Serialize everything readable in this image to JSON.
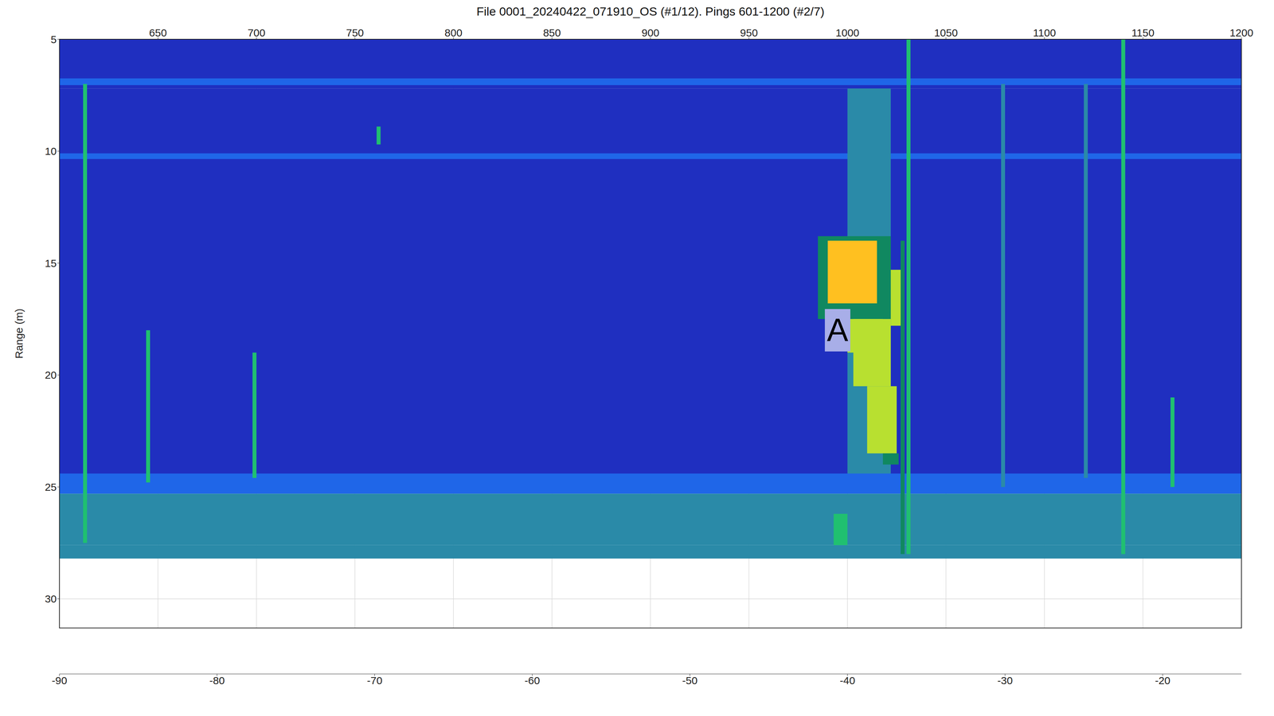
{
  "chart_data": {
    "type": "heatmap",
    "title": "File 0001_20240422_071910_OS (#1/12). Pings 601-1200 (#2/7)",
    "y_label": "Range (m)",
    "xlim": [
      600,
      1200
    ],
    "xticks": [
      650,
      700,
      750,
      800,
      850,
      900,
      950,
      1000,
      1050,
      1100,
      1150,
      1200
    ],
    "ylim": [
      5,
      31.3
    ],
    "yticks": [
      5,
      10,
      15,
      20,
      25,
      30
    ],
    "grid": true,
    "annotations": [
      {
        "text": "A",
        "x": 995,
        "y": 18
      }
    ],
    "cells": [
      {
        "x": [
          600,
          1200
        ],
        "y": [
          7.2,
          24.6
        ],
        "value": -72
      },
      {
        "x": [
          600,
          1200
        ],
        "y": [
          5,
          7.2
        ],
        "value": -74
      },
      {
        "x": [
          600,
          1200
        ],
        "y": [
          6.75,
          7.05
        ],
        "value": -77
      },
      {
        "x": [
          600,
          1200
        ],
        "y": [
          10.1,
          10.35
        ],
        "value": -77
      },
      {
        "x": [
          1000,
          1022
        ],
        "y": [
          7.2,
          24.6
        ],
        "value": -70
      },
      {
        "x": [
          600,
          1200
        ],
        "y": [
          24.4,
          25.3
        ],
        "value": -77
      },
      {
        "x": [
          600,
          1200
        ],
        "y": [
          25.3,
          27.6
        ],
        "value": -69
      },
      {
        "x": [
          600,
          1200
        ],
        "y": [
          27.6,
          28.2
        ],
        "value": -67
      },
      {
        "x": [
          993,
          1000
        ],
        "y": [
          26.2,
          27.6
        ],
        "value": -63
      },
      {
        "x": [
          612,
          614
        ],
        "y": [
          7,
          27.5
        ],
        "value": -63
      },
      {
        "x": [
          644,
          646
        ],
        "y": [
          18,
          24.8
        ],
        "value": -63
      },
      {
        "x": [
          698,
          700
        ],
        "y": [
          19,
          24.6
        ],
        "value": -64
      },
      {
        "x": [
          761,
          763
        ],
        "y": [
          8.9,
          9.7
        ],
        "value": -62
      },
      {
        "x": [
          1027,
          1029
        ],
        "y": [
          14,
          28
        ],
        "value": -60
      },
      {
        "x": [
          1030,
          1032
        ],
        "y": [
          5,
          28
        ],
        "value": -62
      },
      {
        "x": [
          1078,
          1080
        ],
        "y": [
          7,
          25
        ],
        "value": -66
      },
      {
        "x": [
          1139,
          1141
        ],
        "y": [
          5,
          28
        ],
        "value": -63
      },
      {
        "x": [
          1164,
          1166
        ],
        "y": [
          21,
          25
        ],
        "value": -64
      },
      {
        "x": [
          1120,
          1122
        ],
        "y": [
          7,
          24.6
        ],
        "value": -68
      },
      {
        "x": [
          985,
          1022
        ],
        "y": [
          13.8,
          17.5
        ],
        "value": -56
      },
      {
        "x": [
          990,
          1015
        ],
        "y": [
          14,
          16.8
        ],
        "value": -48
      },
      {
        "x": [
          995,
          1010
        ],
        "y": [
          14.5,
          16
        ],
        "value": -46
      },
      {
        "x": [
          1022,
          1027
        ],
        "y": [
          15.3,
          17.8
        ],
        "value": -52
      },
      {
        "x": [
          1003,
          1022
        ],
        "y": [
          17.5,
          20.5
        ],
        "value": -54
      },
      {
        "x": [
          1010,
          1025
        ],
        "y": [
          20.5,
          23.5
        ],
        "value": -54
      },
      {
        "x": [
          1018,
          1026
        ],
        "y": [
          23.5,
          24
        ],
        "value": -60
      },
      {
        "x": [
          1000,
          1018
        ],
        "y": [
          17.5,
          19
        ],
        "value": -53
      }
    ],
    "colorbar": {
      "range": [
        -90,
        -15
      ],
      "ticks": [
        -90,
        -80,
        -70,
        -60,
        -50,
        -40,
        -30,
        -20
      ],
      "colors": [
        "#9a8aa0",
        "#4a5068",
        "#1f66e8",
        "#1f2fc0",
        "#2a8aa8",
        "#20c070",
        "#108860",
        "#b8e030",
        "#ffc020",
        "#ff7850",
        "#ff60a0",
        "#ff3060",
        "#e02030",
        "#c01830",
        "#900010"
      ]
    }
  }
}
